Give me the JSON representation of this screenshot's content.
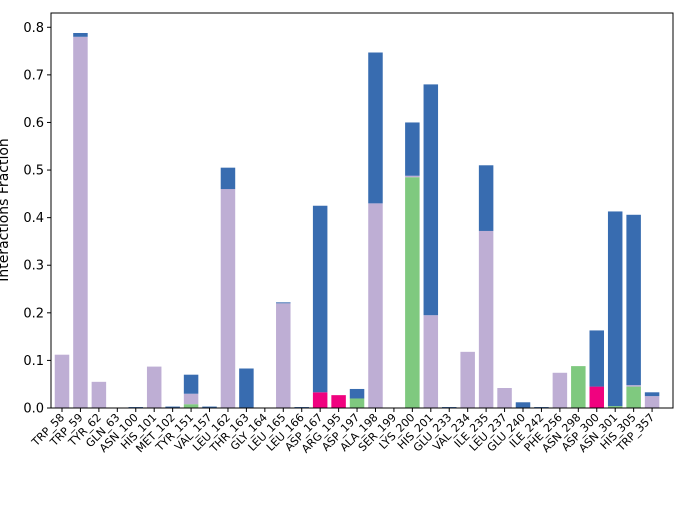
{
  "chart_data": {
    "type": "bar",
    "stacked": true,
    "ylabel": "Interactions Fraction",
    "ylim": [
      0,
      0.83
    ],
    "yticks": [
      "0.0",
      "0.1",
      "0.2",
      "0.3",
      "0.4",
      "0.5",
      "0.6",
      "0.7",
      "0.8"
    ],
    "categories": [
      "TRP_58",
      "TRP_59",
      "TYR_62",
      "GLN_63",
      "ASN_100",
      "HIS_101",
      "MET_102",
      "TYR_151",
      "VAL_157",
      "LEU_162",
      "THR_163",
      "GLY_164",
      "LEU_165",
      "LEU_166",
      "ASP_167",
      "ARG_195",
      "ASP_197",
      "ALA_198",
      "SER_199",
      "LYS_200",
      "HIS_201",
      "GLU_233",
      "VAL_234",
      "ILE_235",
      "LEU_237",
      "GLU_240",
      "ILE_242",
      "PHE_256",
      "ASN_298",
      "ASP_300",
      "ASN_301",
      "HIS_305",
      "TRP_357"
    ],
    "series": [
      {
        "color": "#7fc97f",
        "values": [
          0,
          0,
          0,
          0,
          0,
          0,
          0,
          0.008,
          0,
          0,
          0,
          0,
          0,
          0,
          0,
          0,
          0.02,
          0,
          0,
          0.485,
          0,
          0,
          0,
          0,
          0,
          0,
          0,
          0,
          0.088,
          0,
          0.004,
          0.045,
          0
        ]
      },
      {
        "color": "#beaed4",
        "values": [
          0.112,
          0.78,
          0.055,
          0,
          0,
          0.087,
          0,
          0.022,
          0,
          0.46,
          0,
          0,
          0.22,
          0,
          0,
          0,
          0,
          0.43,
          0,
          0.003,
          0.195,
          0,
          0.118,
          0.372,
          0.042,
          0,
          0,
          0.074,
          0,
          0,
          0,
          0.003,
          0.025
        ]
      },
      {
        "color": "#f0027f",
        "values": [
          0,
          0,
          0,
          0,
          0,
          0,
          0,
          0,
          0,
          0,
          0,
          0,
          0,
          0,
          0.033,
          0.027,
          0,
          0,
          0,
          0,
          0,
          0,
          0,
          0,
          0,
          0,
          0,
          0,
          0,
          0.045,
          0,
          0,
          0
        ]
      },
      {
        "color": "#386cb0",
        "values": [
          0,
          0.008,
          0,
          0,
          0.002,
          0,
          0.003,
          0.04,
          0.003,
          0.045,
          0.083,
          0,
          0.002,
          0.002,
          0.392,
          0,
          0.02,
          0.317,
          0,
          0.112,
          0.485,
          0.002,
          0,
          0.138,
          0,
          0.012,
          0.002,
          0,
          0,
          0.118,
          0.409,
          0.358,
          0.008
        ]
      }
    ]
  }
}
